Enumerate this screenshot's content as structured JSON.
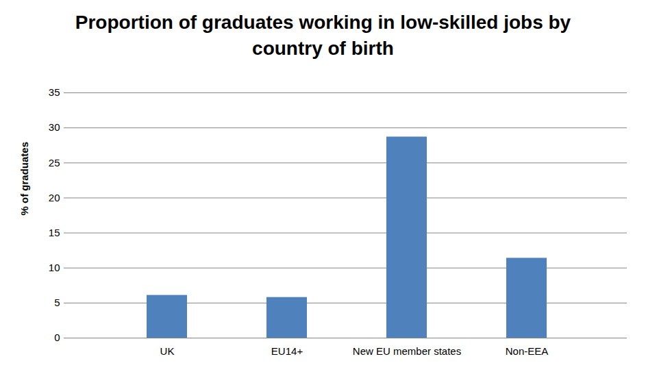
{
  "chart_data": {
    "type": "bar",
    "title": "Proportion of graduates working in low-skilled jobs by country of birth",
    "y_label": "% of graduates",
    "categories": [
      "UK",
      "EU14+",
      "New EU member states",
      "Non-EEA"
    ],
    "values": [
      6.1,
      5.8,
      28.7,
      11.4
    ],
    "color": "#4f81bd",
    "ylim": [
      0,
      35
    ],
    "yticks": [
      0,
      5,
      10,
      15,
      20,
      25,
      30,
      35
    ],
    "grid": true
  }
}
